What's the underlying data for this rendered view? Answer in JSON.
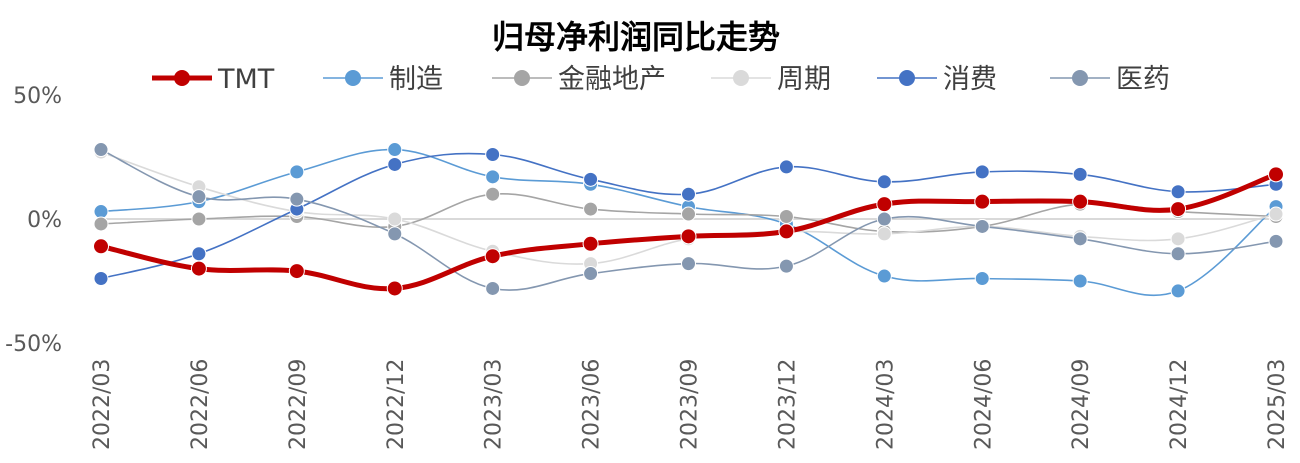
{
  "chart_data": {
    "type": "line",
    "title": "归母净利润同比走势",
    "xlabel": "",
    "ylabel": "",
    "ylim": [
      -50,
      50
    ],
    "y_ticks": [
      "50%",
      "0%",
      "-50%"
    ],
    "y_tick_values": [
      50,
      0,
      -50
    ],
    "legend_position": "top",
    "grid": false,
    "categories": [
      "2022/03",
      "2022/06",
      "2022/09",
      "2022/12",
      "2023/03",
      "2023/06",
      "2023/09",
      "2023/12",
      "2024/03",
      "2024/06",
      "2024/09",
      "2024/12",
      "2025/03"
    ],
    "series": [
      {
        "name": "TMT",
        "color": "#C00000",
        "emphasis": true,
        "values": [
          -11,
          -20,
          -21,
          -28,
          -15,
          -10,
          -7,
          -5,
          6,
          7,
          7,
          4,
          18
        ]
      },
      {
        "name": "制造",
        "color": "#5B9BD5",
        "emphasis": false,
        "values": [
          3,
          7,
          19,
          28,
          17,
          14,
          5,
          -2,
          -23,
          -24,
          -25,
          -29,
          5
        ]
      },
      {
        "name": "金融地产",
        "color": "#A5A5A5",
        "emphasis": false,
        "values": [
          -2,
          0,
          1,
          -3,
          10,
          4,
          2,
          1,
          -5,
          -3,
          6,
          3,
          1
        ]
      },
      {
        "name": "周期",
        "color": "#DADADA",
        "emphasis": false,
        "values": [
          27,
          13,
          3,
          0,
          -13,
          -18,
          -8,
          -5,
          -6,
          -3,
          -7,
          -8,
          2
        ]
      },
      {
        "name": "消费",
        "color": "#4472C4",
        "emphasis": false,
        "values": [
          -24,
          -14,
          4,
          22,
          26,
          16,
          10,
          21,
          15,
          19,
          18,
          11,
          14
        ]
      },
      {
        "name": "医药",
        "color": "#8497B0",
        "emphasis": false,
        "values": [
          28,
          9,
          8,
          -6,
          -28,
          -22,
          -18,
          -19,
          0,
          -3,
          -8,
          -14,
          -9
        ]
      }
    ]
  }
}
